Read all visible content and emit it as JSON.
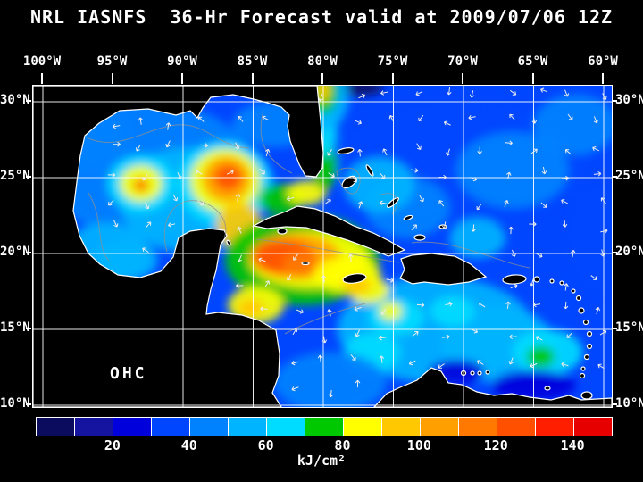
{
  "title": "NRL IASNFS  36-Hr Forecast valid at 2009/07/06 12Z",
  "map": {
    "overlay_label": "OHC",
    "lon_ticks": [
      "100°W",
      "95°W",
      "90°W",
      "85°W",
      "80°W",
      "75°W",
      "70°W",
      "65°W",
      "60°W"
    ],
    "lat_ticks": [
      "30°N",
      "25°N",
      "20°N",
      "15°N",
      "10°N"
    ]
  },
  "colorbar": {
    "unit_label": "kJ/cm²",
    "tick_labels": [
      "20",
      "40",
      "60",
      "80",
      "100",
      "120",
      "140"
    ],
    "min": 0,
    "max": 150,
    "colors": [
      "#0c0c5e",
      "#1414a0",
      "#0000dc",
      "#0046ff",
      "#0082ff",
      "#00b4ff",
      "#00dcff",
      "#00c800",
      "#ffff00",
      "#ffc800",
      "#ffa000",
      "#ff7800",
      "#ff5000",
      "#ff1e00",
      "#e60000"
    ]
  },
  "chart_data": {
    "type": "heatmap",
    "title": "NRL IASNFS 36-Hr Forecast valid at 2009/07/06 12Z",
    "model": "NRL IASNFS",
    "forecast_hours": 36,
    "valid_time": "2009/07/06 12Z",
    "variable": "Ocean Heat Content (OHC)",
    "units": "kJ/cm²",
    "lon_axis_deg_w": [
      100,
      95,
      90,
      85,
      80,
      75,
      70,
      65,
      60
    ],
    "lat_axis_deg_n": [
      30,
      25,
      20,
      15,
      10
    ],
    "colorbar_ticks_kj_cm2": [
      20,
      40,
      60,
      80,
      100,
      120,
      140
    ],
    "colorbar_range_kj_cm2": [
      0,
      150
    ],
    "background_ohc_kj_cm2": 35,
    "notable_features": [
      {
        "name": "western-gulf-warm-eddy",
        "lon_w": 93.0,
        "lat_n": 24.6,
        "peak_ohc": 112
      },
      {
        "name": "loop-current-warm-area",
        "lon_w": 87.0,
        "lat_n": 24.8,
        "peak_ohc": 125
      },
      {
        "name": "nw-caribbean-warm-pool",
        "lon_w": 82.5,
        "lat_n": 19.8,
        "peak_ohc": 130
      },
      {
        "name": "gulf-stream-outflow-plume",
        "lon_w": 80.0,
        "lat_n": 30.6,
        "peak_ohc": 90
      },
      {
        "name": "honduras-coastal-warm-patch",
        "lon_w": 85.0,
        "lat_n": 16.5,
        "peak_ohc": 98
      },
      {
        "name": "venezuela-coastal-low",
        "lon_w": 65.0,
        "lat_n": 11.3,
        "peak_ohc": 25
      }
    ],
    "heat_blobs": [
      [
        92.5,
        25.5,
        7.5,
        4.5,
        45
      ],
      [
        89.5,
        23.5,
        5.0,
        3.5,
        50
      ],
      [
        95.5,
        20.0,
        3.0,
        2.0,
        55
      ],
      [
        94.0,
        19.6,
        2.2,
        1.4,
        58
      ],
      [
        96.5,
        27.5,
        2.5,
        2.0,
        40
      ],
      [
        83.5,
        28.5,
        3.0,
        1.5,
        45
      ],
      [
        70.0,
        26.0,
        9.0,
        4.0,
        38
      ],
      [
        66.5,
        25.5,
        4.0,
        2.5,
        48
      ],
      [
        62.0,
        28.5,
        3.0,
        2.0,
        45
      ],
      [
        74.0,
        23.0,
        3.0,
        2.0,
        48
      ],
      [
        76.0,
        24.5,
        2.5,
        1.8,
        50
      ],
      [
        69.0,
        21.0,
        2.0,
        1.3,
        52
      ],
      [
        72.0,
        15.0,
        7.0,
        3.5,
        50
      ],
      [
        67.5,
        14.0,
        4.0,
        2.5,
        58
      ],
      [
        64.0,
        13.5,
        2.5,
        1.5,
        65
      ],
      [
        64.5,
        13.2,
        1.0,
        0.7,
        78
      ],
      [
        76.5,
        13.5,
        2.0,
        1.3,
        62
      ],
      [
        74.8,
        15.8,
        2.0,
        1.2,
        68
      ],
      [
        75.2,
        16.2,
        0.8,
        0.6,
        85
      ],
      [
        70.8,
        16.2,
        1.6,
        1.0,
        65
      ],
      [
        79.5,
        11.5,
        4.0,
        2.0,
        48
      ],
      [
        65.0,
        11.3,
        3.0,
        1.0,
        25
      ],
      [
        70.5,
        12.2,
        2.0,
        0.8,
        28
      ],
      [
        60.5,
        21.0,
        2.0,
        3.5,
        30
      ],
      [
        77.5,
        30.9,
        1.8,
        0.5,
        8
      ],
      [
        93.0,
        24.6,
        2.4,
        1.9,
        60
      ],
      [
        93.0,
        24.6,
        1.5,
        1.2,
        80
      ],
      [
        93.0,
        24.5,
        0.55,
        0.45,
        112
      ],
      [
        87.0,
        24.6,
        3.4,
        2.8,
        65
      ],
      [
        87.0,
        24.8,
        2.5,
        2.1,
        85
      ],
      [
        86.9,
        24.9,
        1.7,
        1.5,
        105
      ],
      [
        86.8,
        25.0,
        1.0,
        0.85,
        125
      ],
      [
        86.0,
        21.8,
        1.6,
        1.6,
        90
      ],
      [
        81.5,
        19.6,
        5.5,
        3.0,
        72
      ],
      [
        81.0,
        19.6,
        4.3,
        1.9,
        88
      ],
      [
        82.0,
        19.8,
        3.2,
        1.5,
        105
      ],
      [
        82.8,
        19.8,
        2.2,
        1.1,
        128
      ],
      [
        81.6,
        19.3,
        1.3,
        0.8,
        118
      ],
      [
        78.3,
        18.6,
        2.4,
        1.2,
        85
      ],
      [
        76.8,
        17.6,
        1.5,
        0.9,
        80
      ],
      [
        77.6,
        17.9,
        1.0,
        0.6,
        95
      ],
      [
        84.8,
        16.6,
        2.0,
        1.2,
        80
      ],
      [
        85.2,
        16.4,
        0.9,
        0.6,
        98
      ],
      [
        83.0,
        23.6,
        1.6,
        1.0,
        78
      ],
      [
        81.2,
        24.0,
        1.4,
        0.8,
        80
      ],
      [
        79.9,
        25.8,
        0.9,
        1.6,
        70
      ],
      [
        79.8,
        28.0,
        0.8,
        1.6,
        60
      ],
      [
        80.0,
        30.3,
        1.8,
        2.2,
        55
      ],
      [
        80.0,
        30.6,
        1.0,
        1.4,
        75
      ],
      [
        80.0,
        30.8,
        0.5,
        0.8,
        90
      ]
    ]
  }
}
